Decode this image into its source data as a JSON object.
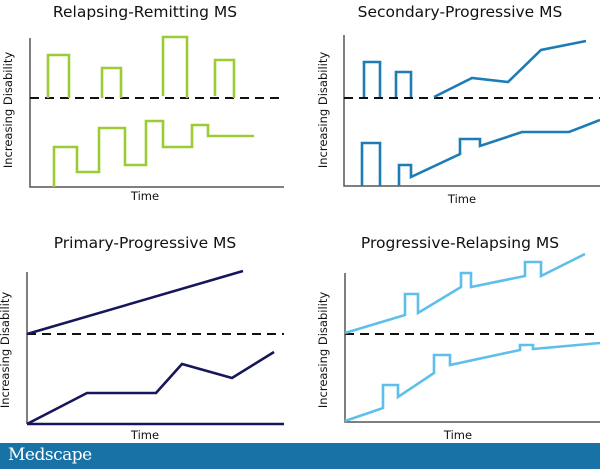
{
  "panels": [
    {
      "title": "Relapsing-Remitting MS",
      "ylabel": "Increasing Disability",
      "xlabel": "Time",
      "color": "#9ccc34"
    },
    {
      "title": "Secondary-Progressive MS",
      "ylabel": "Increasing Disability",
      "xlabel": "Time",
      "color": "#1d7bb5"
    },
    {
      "title": "Primary-Progressive MS",
      "ylabel": "Increasing Disability",
      "xlabel": "Time",
      "color": "#16165a"
    },
    {
      "title": "Progressive-Relapsing MS",
      "ylabel": "Increasing Disability",
      "xlabel": "Time",
      "color": "#5ec0ea"
    }
  ],
  "footer": {
    "brand": "Medscape",
    "color": "#1872a6"
  }
}
